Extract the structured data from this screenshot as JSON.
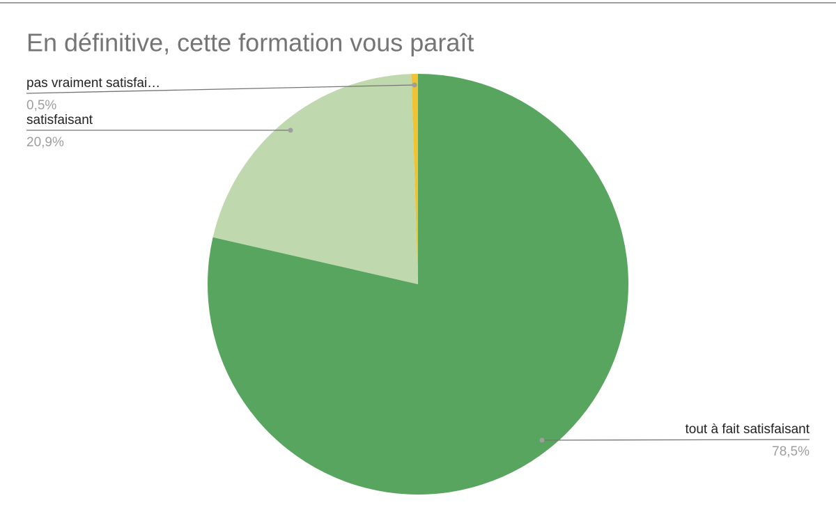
{
  "chart_data": {
    "type": "pie",
    "title": "En définitive, cette formation vous paraît",
    "categories": [
      "tout à fait satisfaisant",
      "satisfaisant",
      "pas vraiment satisfai…"
    ],
    "values": [
      78.5,
      20.9,
      0.5
    ],
    "value_labels": [
      "78,5%",
      "20,9%",
      "0,5%"
    ],
    "colors": [
      "#57a55f",
      "#bfd8ad",
      "#f1c232"
    ]
  }
}
